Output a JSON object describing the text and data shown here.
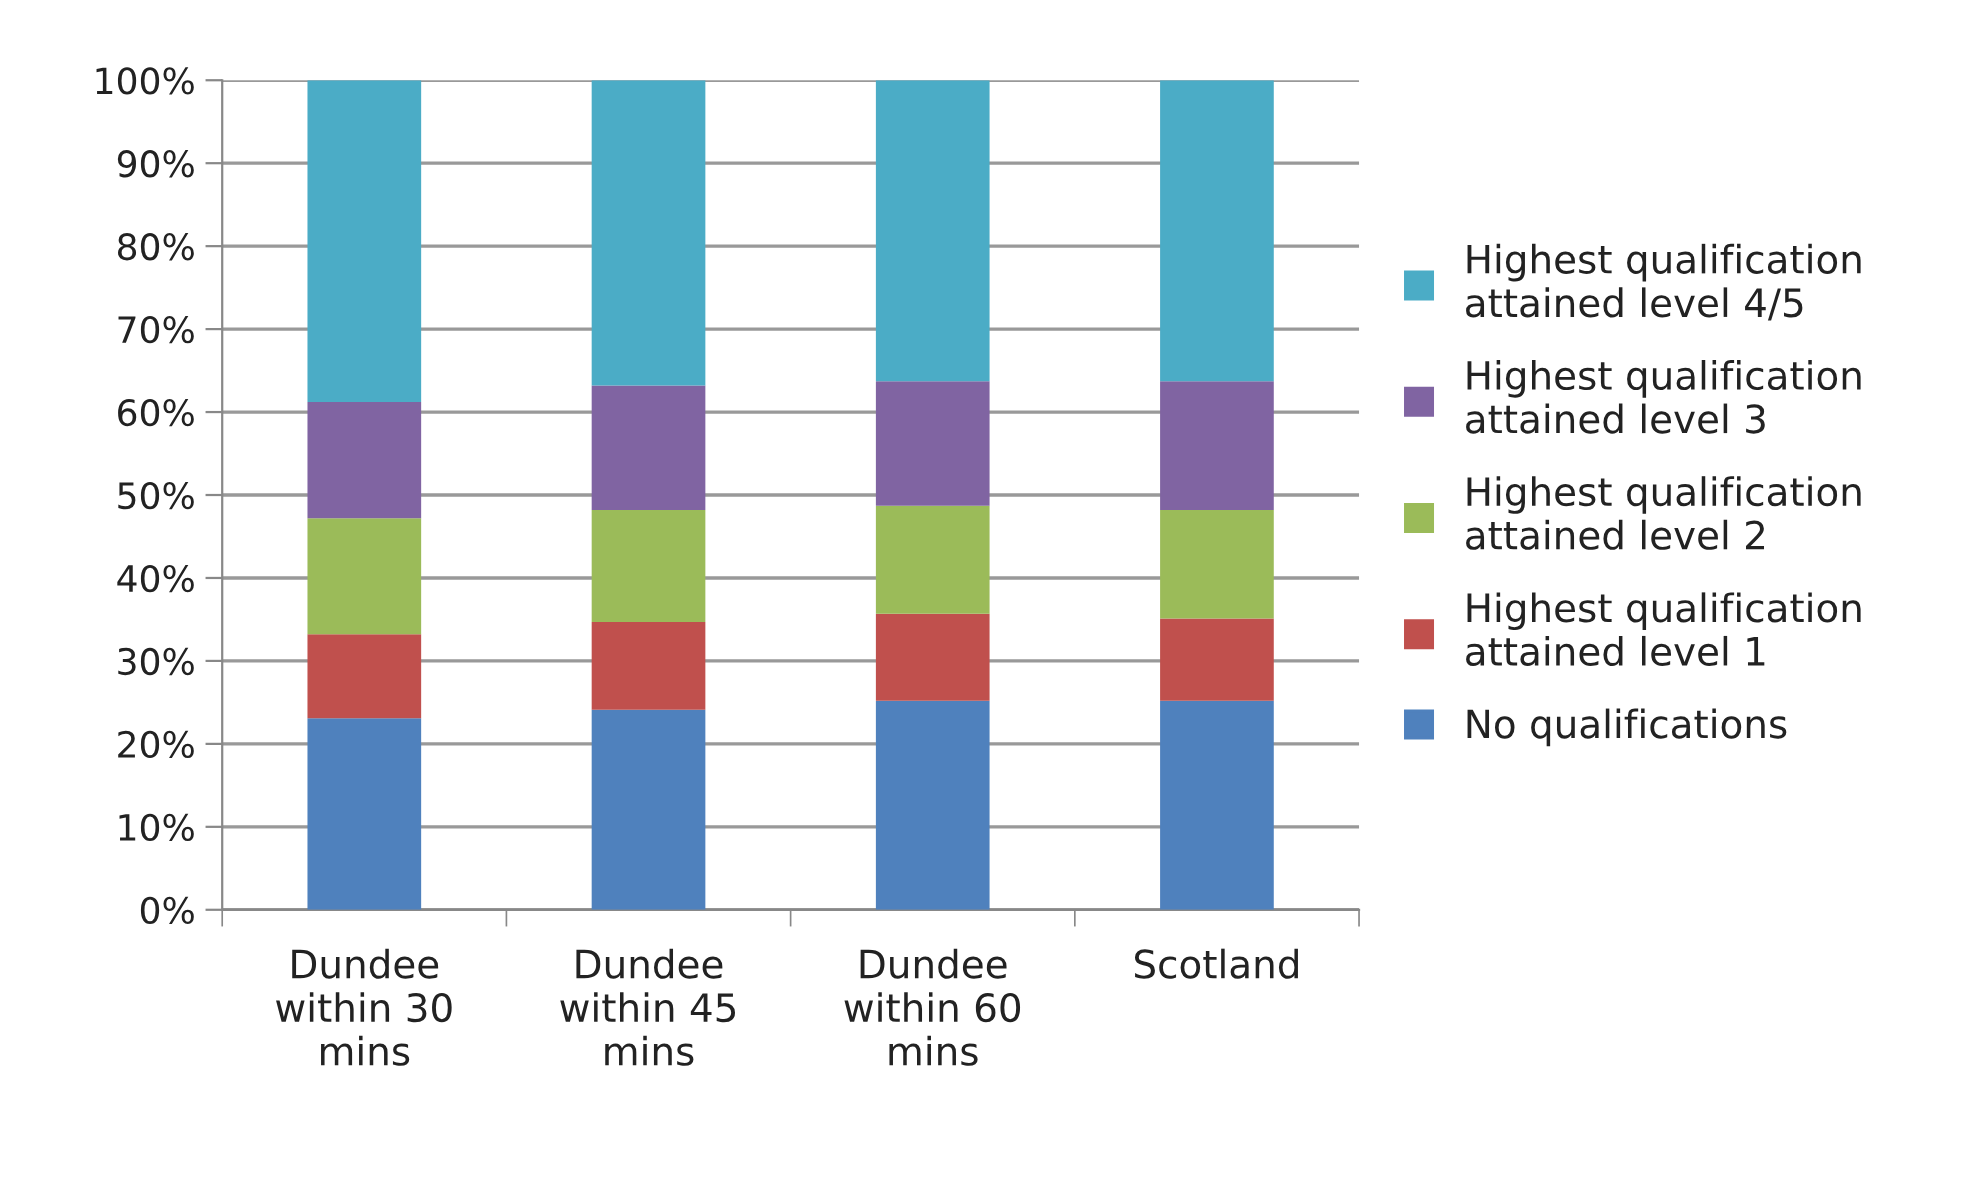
{
  "chart_data": {
    "type": "bar",
    "stacked": true,
    "categories": [
      "Dundee\nwithin 30\nmins",
      "Dundee\nwithin 45\nmins",
      "Dundee\nwithin 60\nmins",
      "Scotland"
    ],
    "series": [
      {
        "name": "No qualifications",
        "color": "#4f81bd",
        "values": [
          23.1,
          24.1,
          25.2,
          25.2
        ]
      },
      {
        "name": "Highest qualification\nattained level 1",
        "color": "#c0504d",
        "values": [
          10.1,
          10.6,
          10.5,
          9.9
        ]
      },
      {
        "name": "Highest qualification\nattained level 2",
        "color": "#9bbb59",
        "values": [
          14.0,
          13.5,
          13.0,
          13.1
        ]
      },
      {
        "name": "Highest qualification\nattained level 3",
        "color": "#8064a2",
        "values": [
          14.0,
          15.0,
          15.0,
          15.5
        ]
      },
      {
        "name": "Highest qualification\nattained level 4/5",
        "color": "#4bacc6",
        "values": [
          38.8,
          36.8,
          36.3,
          36.3
        ]
      }
    ],
    "ylim": [
      0,
      100
    ],
    "yticks": [
      {
        "value": 0,
        "label": "0%"
      },
      {
        "value": 10,
        "label": "10%"
      },
      {
        "value": 20,
        "label": "20%"
      },
      {
        "value": 30,
        "label": "30%"
      },
      {
        "value": 40,
        "label": "40%"
      },
      {
        "value": 50,
        "label": "50%"
      },
      {
        "value": 60,
        "label": "60%"
      },
      {
        "value": 70,
        "label": "70%"
      },
      {
        "value": 80,
        "label": "80%"
      },
      {
        "value": 90,
        "label": "90%"
      },
      {
        "value": 100,
        "label": "100%"
      }
    ],
    "grid": "y",
    "legend": "right"
  }
}
